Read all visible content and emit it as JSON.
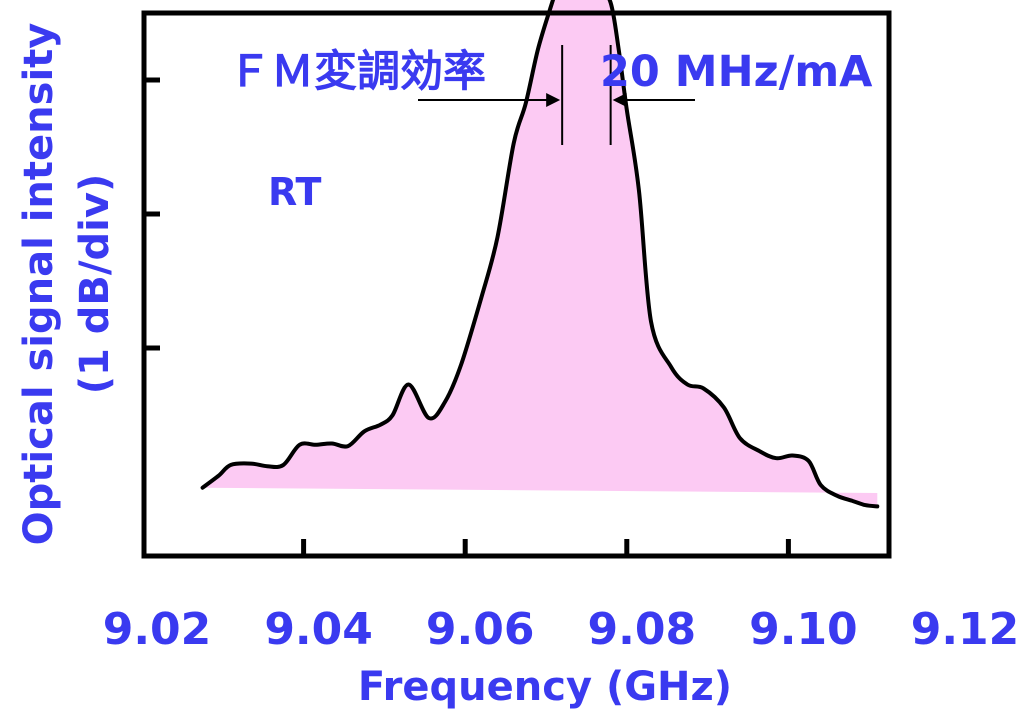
{
  "colors": {
    "text": "#3a3af0",
    "fill": "#fccaf3",
    "line": "#000000",
    "frame": "#000000"
  },
  "chart_data": {
    "type": "area",
    "xlabel": "Frequency (GHz)",
    "ylabel_line1": "Optical signal intensity",
    "ylabel_line2": "(1 dB/div)",
    "x_ticks": [
      "9.02",
      "9.04",
      "9.06",
      "9.08",
      "9.10",
      "9.12"
    ],
    "x_tick_values": [
      9.02,
      9.04,
      9.06,
      9.08,
      9.1,
      9.12
    ],
    "xlim": [
      9.02,
      9.12
    ],
    "y_unit": "dB",
    "y_div_db": 1,
    "y_ticks": [
      1,
      2,
      3
    ],
    "ylim": [
      -1,
      4
    ],
    "annotations": {
      "fm_label": "ＦＭ変調効率",
      "fm_value": "20 MHz/mA",
      "rt_label": "RT"
    },
    "series": [
      {
        "x": [
          9.0275,
          9.0295,
          9.031,
          9.0335,
          9.0355,
          9.0375,
          9.0395,
          9.0415,
          9.0435,
          9.0455,
          9.0475,
          9.0495,
          9.051,
          9.053,
          9.0555,
          9.0575,
          9.0595,
          9.062,
          9.064,
          9.066,
          9.0675,
          9.069,
          9.0705,
          9.0715,
          9.0725,
          9.074,
          9.0755,
          9.0765,
          9.078,
          9.079,
          9.08,
          9.0815,
          9.083,
          9.0855,
          9.0875,
          9.0895,
          9.092,
          9.094,
          9.0965,
          9.0985,
          9.1005,
          9.1025,
          9.104,
          9.106,
          9.108,
          9.1095,
          9.111
        ],
        "y": [
          -0.02,
          0.07,
          0.15,
          0.16,
          0.14,
          0.15,
          0.3,
          0.3,
          0.31,
          0.29,
          0.4,
          0.45,
          0.52,
          0.75,
          0.5,
          0.62,
          0.9,
          1.4,
          1.85,
          2.55,
          2.85,
          3.25,
          3.55,
          3.72,
          3.77,
          3.7,
          3.68,
          3.72,
          3.6,
          3.25,
          2.8,
          2.2,
          1.22,
          0.88,
          0.75,
          0.72,
          0.58,
          0.35,
          0.25,
          0.2,
          0.22,
          0.18,
          0.0,
          -0.08,
          -0.12,
          -0.15,
          -0.16
        ]
      }
    ],
    "fm_markers_x": [
      9.072,
      9.078
    ]
  }
}
